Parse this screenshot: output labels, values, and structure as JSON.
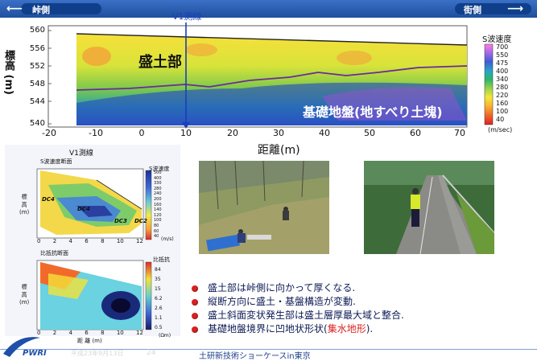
{
  "header": {
    "left_label": "峠側",
    "right_label": "街側",
    "left_arrow": "⟵",
    "right_arrow": "⟶",
    "line_label": "V1測線"
  },
  "main_section": {
    "y_axis_label": "標高 (m)",
    "x_axis_label": "距離(m)",
    "y_ticks": [
      "560",
      "556",
      "552",
      "548",
      "544",
      "540"
    ],
    "x_ticks": [
      "-20",
      "-10",
      "0",
      "10",
      "20",
      "30",
      "40",
      "50",
      "60",
      "70"
    ],
    "upper_region_label": "盛土部",
    "lower_region_label": "基礎地盤(地すべり土塊)",
    "legend": {
      "title": "S波速度",
      "values": [
        "700",
        "550",
        "475",
        "400",
        "340",
        "280",
        "220",
        "160",
        "100",
        "40"
      ],
      "unit": "(m/sec)"
    }
  },
  "small_plots": {
    "line_caption": "V1測線",
    "top_plot_title": "S波速度断面",
    "top_colorbar_title": "S波速度",
    "top_colorbar_values": [
      "500",
      "400",
      "330",
      "280",
      "240",
      "200",
      "160",
      "140",
      "120",
      "100",
      "80",
      "60",
      "40"
    ],
    "top_colorbar_unit": "(m/s)",
    "top_annotations": [
      "DC4",
      "DC4",
      "DC3",
      "DC2"
    ],
    "y_axis_label": "標\n高\n(m)",
    "y_ticks": [
      "557",
      "556",
      "555",
      "554",
      "553",
      "552",
      "551",
      "550",
      "549",
      "548",
      "547"
    ],
    "x_ticks": [
      "0",
      "2",
      "4",
      "6",
      "8",
      "10",
      "12"
    ],
    "bottom_plot_title": "比抵抗断面",
    "bottom_colorbar_title": "比抵抗",
    "bottom_colorbar_values": [
      "84",
      "35",
      "15",
      "6.2",
      "2.6",
      "1.1",
      "0.5"
    ],
    "bottom_colorbar_unit": "(Ωm)",
    "bottom_x_label": "距 離 (m)"
  },
  "bullets": [
    {
      "plain": "盛土部は峠側に向かって厚くなる.",
      "accent": ""
    },
    {
      "plain": "縦断方向に盛土・基盤構造が変動.",
      "accent": ""
    },
    {
      "plain": "盛土斜面変状発生部は盛土層厚最大域と整合.",
      "accent": ""
    },
    {
      "plain": "基礎地盤境界に凹地状形状(",
      "accent": "集水地形",
      "tail": ").",
      "colors": {
        "bullet": "#d9211f",
        "text": "#0d1b55"
      }
    }
  ],
  "footer": {
    "logo_text": "PWRI",
    "page_number": "24",
    "faded_text": "平成23年9月13日",
    "event_text": "土研新技術ショーケースin東京"
  }
}
